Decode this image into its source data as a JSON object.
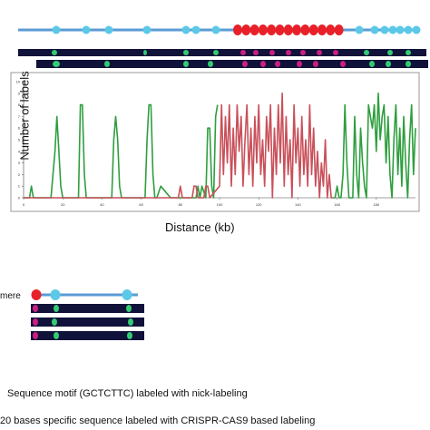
{
  "colors": {
    "track": "#5b9bd5",
    "nick_label": "#5bc8e8",
    "crispr_label": "#e8202a",
    "green_trace": "#2e9e3e",
    "red_trace": "#c9505a",
    "image_background": "#10123a",
    "image_green_spot": "#39e07a",
    "image_magenta_spot": "#e0208a"
  },
  "labels": {
    "x_axis_title": "Distance (kb)",
    "y_axis_title": "Number of labels",
    "telomere_label": "mere",
    "legend_nick": "Sequence motif  (GCTCTTC) labeled with nick-labeling",
    "legend_crispr": "20 bases specific sequence labeled with CRISPR-CAS9 based labeling"
  },
  "chart_data": {
    "type": "line",
    "xlabel": "Distance (kb)",
    "ylabel": "Number of labels",
    "xlim": [
      0,
      200
    ],
    "ylim": [
      0,
      10
    ],
    "x_ticks": [
      0,
      20,
      40,
      60,
      80,
      100,
      120,
      140,
      160,
      180
    ],
    "y_ticks": [
      0,
      1,
      2,
      3,
      4,
      5,
      6,
      7,
      8,
      9,
      10
    ],
    "series": [
      {
        "color": "#2e9e3e",
        "x": [
          0,
          3,
          4,
          5,
          14,
          16,
          17,
          18,
          19,
          20,
          28,
          29,
          30,
          31,
          32,
          40,
          45,
          46,
          47,
          48,
          49,
          50,
          62,
          63,
          64,
          65,
          66,
          67,
          68,
          70,
          75,
          80,
          88,
          89,
          90,
          91,
          93,
          94,
          95,
          96,
          97,
          98,
          99
        ],
        "y": [
          0,
          0,
          1,
          0,
          0,
          4,
          7,
          4,
          1,
          0,
          0,
          8,
          8,
          2,
          0,
          0,
          0,
          5,
          7,
          5,
          1,
          0,
          0,
          5,
          8,
          8,
          2,
          0,
          0,
          1,
          0,
          0,
          0,
          1,
          0,
          1,
          0,
          6,
          6,
          1,
          0,
          7,
          8
        ]
      },
      {
        "color": "#c9505a",
        "x": [
          0,
          10,
          20,
          30,
          40,
          50,
          60,
          70,
          79,
          80,
          81,
          82,
          86,
          87,
          88,
          89,
          92,
          93,
          94,
          95,
          100,
          101,
          102,
          103,
          104,
          105,
          106,
          107,
          108,
          109,
          110,
          111,
          112,
          113,
          114,
          115,
          116,
          117,
          118,
          119,
          120,
          121,
          122,
          123,
          124,
          125,
          126,
          127,
          128,
          129,
          130,
          131,
          132,
          133,
          134,
          135,
          136,
          137,
          138,
          139,
          140,
          141,
          142,
          143,
          144,
          145,
          146,
          147,
          148,
          149,
          150,
          151,
          152,
          153,
          154,
          155,
          156,
          157,
          158
        ],
        "y": [
          0,
          0,
          0,
          0,
          0,
          0,
          0,
          0,
          0,
          1,
          0,
          0,
          0,
          1,
          1,
          0,
          0,
          1,
          1,
          0,
          1,
          8,
          2,
          7,
          3,
          8,
          1,
          6,
          2,
          8,
          4,
          7,
          1,
          5,
          8,
          2,
          6,
          1,
          7,
          3,
          8,
          2,
          5,
          1,
          7,
          4,
          8,
          0,
          6,
          2,
          8,
          3,
          9,
          1,
          7,
          2,
          5,
          0,
          8,
          3,
          6,
          1,
          7,
          2,
          5,
          1,
          8,
          2,
          6,
          1,
          4,
          0,
          3,
          1,
          5,
          0,
          2,
          0,
          0
        ]
      },
      {
        "color": "#2e9e3e",
        "x": [
          158,
          159,
          160,
          161,
          162,
          163,
          164,
          165,
          166,
          167,
          168,
          169,
          170,
          171,
          172,
          173,
          174,
          175,
          176,
          177,
          178,
          179,
          180,
          181,
          182,
          183,
          184,
          185,
          186,
          187,
          188,
          189,
          190,
          191,
          192,
          193,
          194,
          195,
          196,
          197,
          198,
          199,
          200
        ],
        "y": [
          0,
          0,
          1,
          0,
          0,
          2,
          8,
          3,
          0,
          0,
          0,
          7,
          2,
          0,
          6,
          3,
          1,
          0,
          8,
          7,
          6,
          8,
          4,
          9,
          5,
          7,
          8,
          3,
          7,
          2,
          0,
          5,
          8,
          2,
          6,
          1,
          7,
          3,
          0,
          5,
          8,
          2,
          6
        ]
      }
    ]
  }
}
